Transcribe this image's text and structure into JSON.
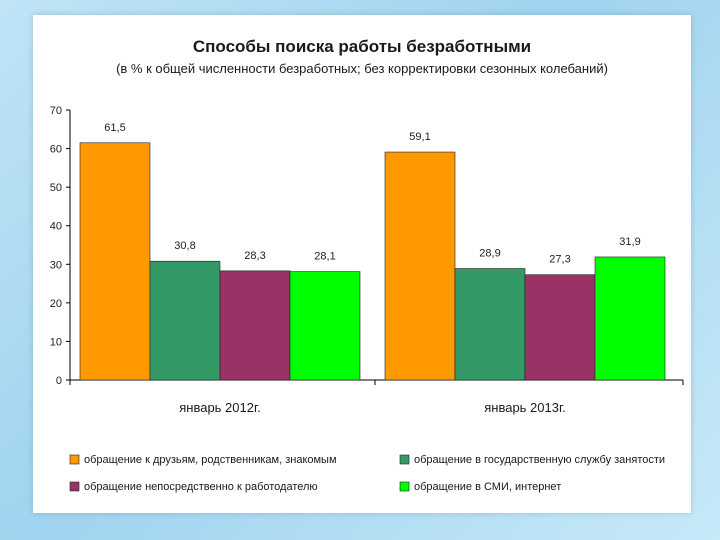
{
  "chart_data": {
    "type": "bar",
    "title": "Способы поиска работы безработными",
    "subtitle": "(в % к общей численности безработных; без корректировки сезонных колебаний)",
    "categories": [
      "январь 2012г.",
      "январь 2013г."
    ],
    "series": [
      {
        "name": "обращение к друзьям, родственникам, знакомым",
        "values": [
          61.5,
          59.1
        ],
        "labels": [
          "61,5",
          "59,1"
        ],
        "color": "#ff9900"
      },
      {
        "name": "обращение в государственную службу занятости",
        "values": [
          30.8,
          28.9
        ],
        "labels": [
          "30,8",
          "28,9"
        ],
        "color": "#339966"
      },
      {
        "name": "обращение непосредственно к работодателю",
        "values": [
          28.3,
          27.3
        ],
        "labels": [
          "28,3",
          "27,3"
        ],
        "color": "#993366"
      },
      {
        "name": "обращение в СМИ, интернет",
        "values": [
          28.1,
          31.9
        ],
        "labels": [
          "28,1",
          "31,9"
        ],
        "color": "#00ff00"
      }
    ],
    "yticks": [
      0,
      10,
      20,
      30,
      40,
      50,
      60,
      70
    ],
    "ylim": [
      0,
      70
    ],
    "xlabel": "",
    "ylabel": "",
    "grid": false,
    "legend_position": "bottom"
  }
}
